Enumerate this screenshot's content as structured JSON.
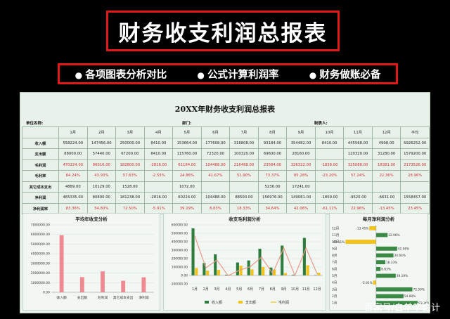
{
  "banner": {
    "title": "财务收支利润总报表"
  },
  "features": [
    "各项图表分析对比",
    "公式计算利润率",
    "财务做账必备"
  ],
  "sheet": {
    "title": "20XX年财务收支利润总报表",
    "unit_label": "单位名称:",
    "dept_label": "部门:",
    "maker_label": "制表人:"
  },
  "table": {
    "headers": [
      "",
      "1月",
      "2月",
      "3月",
      "4月",
      "5月",
      "6月",
      "7月",
      "8月",
      "9月",
      "10月",
      "11月",
      "12月",
      "平均"
    ],
    "rows": [
      {
        "label": "收入额",
        "cells": [
          "558224.00",
          "147456.00",
          "250000.00",
          "8410.00",
          "153664.00",
          "177608.00",
          "316808.00",
          "93184.00",
          "354482.00",
          "8410.00",
          "445568.00",
          "4998.00",
          "5926252.00"
        ]
      },
      {
        "label": "支出额",
        "cells": [
          "88000.00",
          "57440.00",
          "67200.00",
          "8410.00",
          "115760.00",
          "72320.00",
          "100320.00",
          "69600.00",
          "28160.00",
          "",
          "120320.00",
          "31280.00",
          "1579200.00"
        ]
      },
      {
        "label": "毛利润",
        "cells": [
          "470224.00",
          "90016.00",
          "182800.00",
          "-2816.00",
          "61184.00",
          "104488.00",
          "216488.00",
          "23584.00",
          "326322.00",
          "-1838.00",
          "325088.00",
          "18381.00",
          "2173526.00"
        ]
      },
      {
        "label": "毛利率",
        "cells": [
          "84.24%",
          "43.93%",
          "57.63%",
          "-2.55%",
          "24.86%",
          "41.67%",
          "51.90%",
          "73.37%",
          "85.28%",
          "-23.20%",
          "57.24%",
          "22.36%",
          "28.96%"
        ]
      },
      {
        "label": "其它成本支出",
        "cells": [
          "4889.00",
          "10129.00",
          "1528.00",
          "",
          "1072.00",
          "",
          "",
          "5236.00",
          "17241.00",
          "",
          "",
          "",
          ""
        ]
      },
      {
        "label": "净利润",
        "cells": [
          "465335.00",
          "80800.00",
          "181238.00",
          "-2816.00",
          "60224.00",
          "104488.00",
          "88500.00",
          "156976.00",
          "149081.00",
          "-1859.00",
          "-9520.00",
          "-6631.00",
          "1558457.00"
        ]
      },
      {
        "label": "净利润率",
        "cells": [
          "83.36%",
          "54.80%",
          "72.50%",
          "-5.91%",
          "39.19%",
          "8.83%",
          "18.33%",
          "34.64%",
          "42.06%",
          "-61.11%",
          "22.96%",
          "-13.45%",
          "23.45%"
        ]
      }
    ]
  },
  "charts": [
    {
      "type": "bar",
      "title": "平均年收支分析",
      "categories": [
        "收入额",
        "支出额",
        "毛利润",
        "其它成本支出",
        "净利润"
      ],
      "values": [
        5926252,
        1579200,
        2173526,
        1200000,
        1558457
      ],
      "ylim": [
        0,
        7000000
      ],
      "yticks": [
        "7000000.00",
        "6000000.00",
        "5000000.00",
        "4000000.00",
        "3000000.00",
        "2000000.00",
        "1000000.00",
        "0.00"
      ],
      "color": "#f08a92"
    },
    {
      "type": "bar+line",
      "title": "收支毛利润分析",
      "categories": [
        "1月",
        "2月",
        "3月",
        "4月",
        "5月",
        "6月",
        "7月",
        "8月",
        "9月",
        "10月",
        "11月",
        "12月"
      ],
      "ylim": [
        -100000,
        600000
      ],
      "yticks": [
        "600000.00",
        "500000.00",
        "400000.00",
        "300000.00",
        "200000.00",
        "100000.00",
        "0.00",
        "-100000.00"
      ],
      "series": [
        {
          "name": "收入额",
          "values": [
            558224,
            147456,
            250000,
            8410,
            153664,
            177608,
            316808,
            93184,
            354482,
            8410,
            445568,
            4998
          ],
          "color": "#2e7d3e"
        },
        {
          "name": "支出额",
          "values": [
            88000,
            57440,
            67200,
            8410,
            115760,
            72320,
            100320,
            69600,
            28160,
            0,
            120320,
            31280
          ],
          "color": "#f2c318"
        },
        {
          "name": "毛利润",
          "values": [
            470224,
            90016,
            182800,
            -2816,
            61184,
            104488,
            216488,
            23584,
            326322,
            -1838,
            325088,
            18381
          ],
          "color": "#e89a8a"
        }
      ]
    },
    {
      "type": "hbar",
      "title": "每月净利润分析",
      "categories": [
        "12月",
        "11月",
        "10月",
        "9月",
        "8月",
        "7月",
        "6月",
        "5月",
        "4月",
        "3月",
        "2月",
        "1月"
      ],
      "values": [
        -13.45,
        22.96,
        -61.11,
        42.06,
        34.64,
        18.33,
        8.83,
        39.19,
        -5.91,
        72.5,
        54.8,
        83.36
      ],
      "labels": [
        "-13.45%",
        "22.96%",
        "-61.11%",
        "42.06%",
        "34.64%",
        "18.33%",
        "8.83%",
        "39.19%",
        "-5.91%",
        "72.50%",
        "54.80%",
        "83.36%"
      ],
      "xlim": [
        -70,
        90
      ],
      "pos_color": "#3a8a46",
      "neg_color": "#f2c318"
    }
  ],
  "watermark": "百家号/白羊学会计"
}
